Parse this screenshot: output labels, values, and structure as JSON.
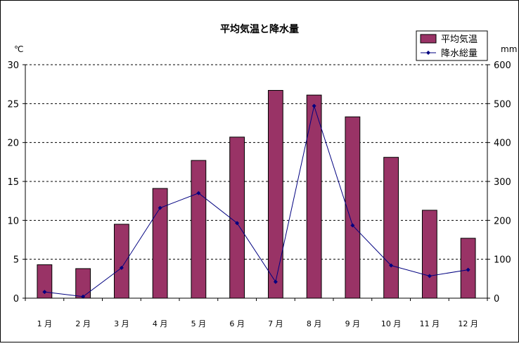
{
  "chart_data": {
    "type": "bar+line",
    "title": "平均気温と降水量",
    "categories": [
      "1 月",
      "2 月",
      "3 月",
      "4 月",
      "5 月",
      "6 月",
      "7 月",
      "8 月",
      "9 月",
      "10 月",
      "11 月",
      "12 月"
    ],
    "series": [
      {
        "name": "平均気温",
        "type": "bar",
        "axis": "left",
        "color": "#993366",
        "values": [
          4.3,
          3.8,
          9.5,
          14.1,
          17.7,
          20.7,
          26.7,
          26.1,
          23.3,
          18.1,
          11.3,
          7.7
        ]
      },
      {
        "name": "降水総量",
        "type": "line",
        "axis": "right",
        "color": "#000080",
        "values": [
          16,
          4,
          78,
          232,
          270,
          193,
          42,
          494,
          187,
          84,
          57,
          73
        ]
      }
    ],
    "y_left": {
      "unit": "℃",
      "min": 0,
      "max": 30,
      "ticks": [
        "0",
        "5",
        "10",
        "15",
        "20",
        "25",
        "30"
      ]
    },
    "y_right": {
      "unit": "mm",
      "min": 0,
      "max": 600,
      "ticks": [
        "0",
        "100",
        "200",
        "300",
        "400",
        "500",
        "600"
      ]
    },
    "grid": "horizontal-dashed",
    "legend_position": "top-right"
  }
}
